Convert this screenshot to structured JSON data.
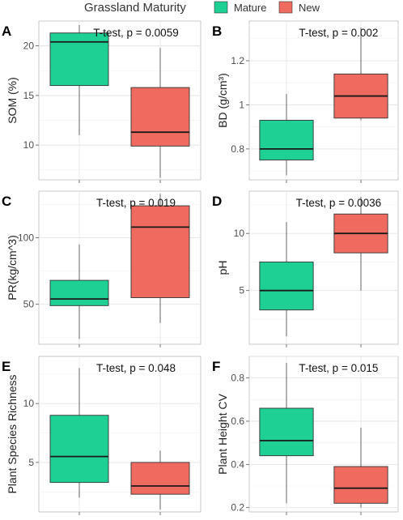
{
  "legend": {
    "title": "Grassland Maturity",
    "entries": [
      {
        "name": "Mature",
        "color": "#1fd094"
      },
      {
        "name": "New",
        "color": "#f06b5f"
      }
    ]
  },
  "chart_data": [
    {
      "type": "boxplot",
      "panel_label": "A",
      "ylabel": "SOM (%)",
      "annotation": "T-test, p = 0.0059",
      "ylim": [
        6.5,
        22.5
      ],
      "yticks": [
        10,
        15,
        20
      ],
      "grid": true,
      "groups": [
        {
          "name": "Mature",
          "min": 11,
          "q1": 16,
          "median": 20.4,
          "q3": 21.3,
          "max": 22.1
        },
        {
          "name": "New",
          "min": 6.7,
          "q1": 9.9,
          "median": 11.3,
          "q3": 15.8,
          "max": 19.8
        }
      ]
    },
    {
      "type": "boxplot",
      "panel_label": "B",
      "ylabel": "BD (g/cm³)",
      "annotation": "T-test, p = 0.002",
      "ylim": [
        0.66,
        1.38
      ],
      "yticks": [
        0.8,
        1.0,
        1.2
      ],
      "grid": true,
      "groups": [
        {
          "name": "Mature",
          "min": 0.68,
          "q1": 0.75,
          "median": 0.8,
          "q3": 0.93,
          "max": 1.05
        },
        {
          "name": "New",
          "min": 0.93,
          "q1": 0.94,
          "median": 1.04,
          "q3": 1.14,
          "max": 1.35
        }
      ]
    },
    {
      "type": "boxplot",
      "panel_label": "C",
      "ylabel": "PR(kg/cm^3)",
      "annotation": "T-test, p = 0.019",
      "ylim": [
        20,
        135
      ],
      "yticks": [
        50,
        100
      ],
      "grid": true,
      "groups": [
        {
          "name": "Mature",
          "min": 24,
          "q1": 49,
          "median": 54,
          "q3": 68,
          "max": 95
        },
        {
          "name": "New",
          "min": 36,
          "q1": 55,
          "median": 108,
          "q3": 124,
          "max": 133
        }
      ]
    },
    {
      "type": "boxplot",
      "panel_label": "D",
      "ylabel": "pH",
      "annotation": "T-test, p = 0.0036",
      "ylim": [
        0.3,
        13.7
      ],
      "yticks": [
        5,
        10
      ],
      "grid": true,
      "groups": [
        {
          "name": "Mature",
          "min": 1,
          "q1": 3.3,
          "median": 5,
          "q3": 7.5,
          "max": 11
        },
        {
          "name": "New",
          "min": 5,
          "q1": 8.3,
          "median": 10,
          "q3": 11.7,
          "max": 13.2
        }
      ]
    },
    {
      "type": "boxplot",
      "panel_label": "E",
      "ylabel": "Plant Species Richness",
      "annotation": "T-test, p = 0.048",
      "ylim": [
        0.8,
        14
      ],
      "yticks": [
        5,
        10
      ],
      "grid": true,
      "groups": [
        {
          "name": "Mature",
          "min": 2,
          "q1": 3.3,
          "median": 5.5,
          "q3": 9,
          "max": 13
        },
        {
          "name": "New",
          "min": 1,
          "q1": 2.3,
          "median": 3,
          "q3": 5,
          "max": 6
        }
      ]
    },
    {
      "type": "boxplot",
      "panel_label": "F",
      "ylabel": "Plant Height CV",
      "annotation": "T-test, p = 0.015",
      "ylim": [
        0.18,
        0.9
      ],
      "yticks": [
        0.2,
        0.4,
        0.6,
        0.8
      ],
      "grid": true,
      "groups": [
        {
          "name": "Mature",
          "min": 0.22,
          "q1": 0.44,
          "median": 0.51,
          "q3": 0.66,
          "max": 0.87
        },
        {
          "name": "New",
          "min": 0.2,
          "q1": 0.22,
          "median": 0.29,
          "q3": 0.39,
          "max": 0.57
        }
      ]
    }
  ]
}
